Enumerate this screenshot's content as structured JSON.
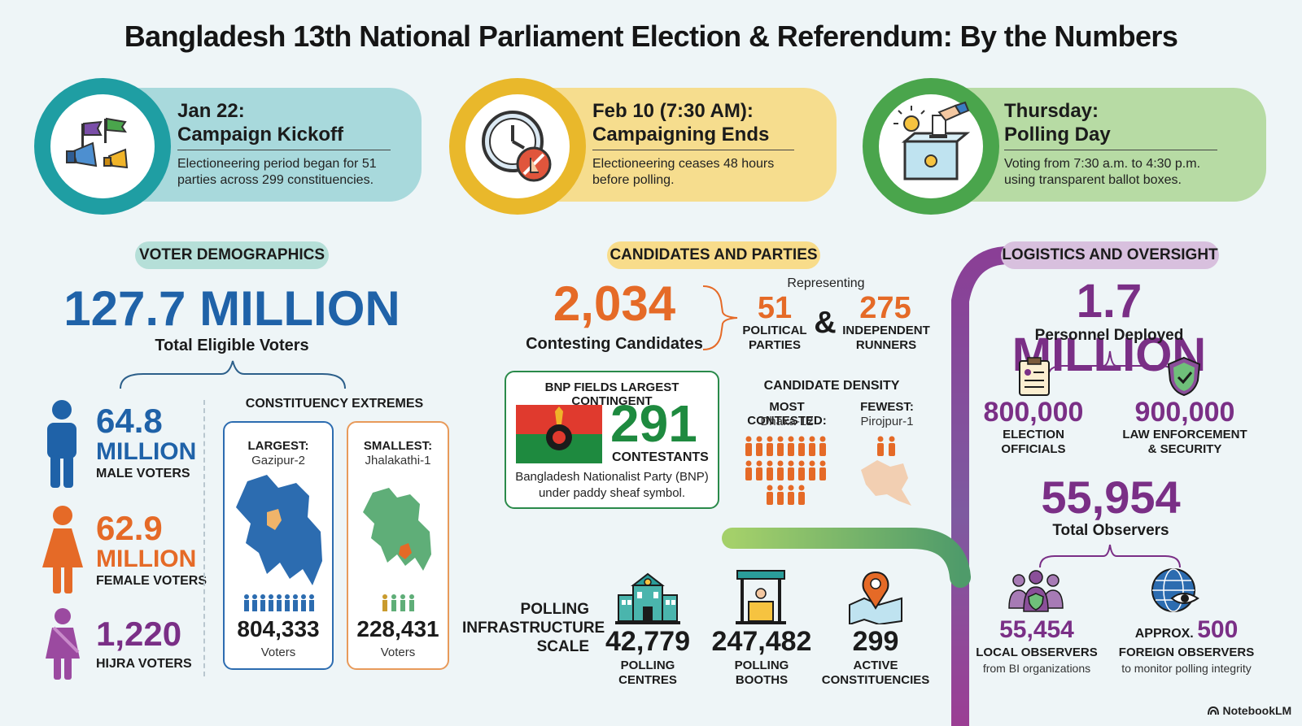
{
  "title": "Bangladesh 13th National Parliament Election & Referendum: By the Numbers",
  "timeline": [
    {
      "head1": "Jan 22:",
      "head2": "Campaign Kickoff",
      "body1": "Electioneering period began for 51",
      "body2": "parties across 299 constituencies.",
      "icon": "megaphone-flags-icon"
    },
    {
      "head1": "Feb 10 (7:30 AM):",
      "head2": "Campaigning Ends",
      "body1": "Electioneering ceases 48 hours",
      "body2": "before polling.",
      "icon": "clock-stop-icon"
    },
    {
      "head1": "Thursday:",
      "head2": "Polling Day",
      "body1": "Voting from 7:30 a.m. to 4:30 p.m.",
      "body2": "using transparent ballot boxes.",
      "icon": "ballot-box-icon"
    }
  ],
  "voters": {
    "section": "VOTER DEMOGRAPHICS",
    "total": "127.7 MILLION",
    "total_label": "Total Eligible Voters",
    "male_value": "64.8",
    "male_unit": "MILLION",
    "male_label": "MALE VOTERS",
    "female_value": "62.9",
    "female_unit": "MILLION",
    "female_label": "FEMALE VOTERS",
    "hijra_value": "1,220",
    "hijra_label": "HIJRA VOTERS",
    "extremes_title": "CONSTITUENCY EXTREMES",
    "largest_label": "LARGEST:",
    "largest_name": "Gazipur-2",
    "largest_count": "804,333",
    "largest_unit": "Voters",
    "smallest_label": "SMALLEST:",
    "smallest_name": "Jhalakathi-1",
    "smallest_count": "228,431",
    "smallest_unit": "Voters"
  },
  "candidates": {
    "section": "CANDIDATES AND PARTIES",
    "total": "2,034",
    "total_label": "Contesting Candidates",
    "representing": "Representing",
    "parties_value": "51",
    "parties_label1": "POLITICAL",
    "parties_label2": "PARTIES",
    "amp": "&",
    "independent_value": "275",
    "independent_label1": "INDEPENDENT",
    "independent_label2": "RUNNERS",
    "bnp_title": "BNP FIELDS LARGEST CONTINGENT",
    "bnp_value": "291",
    "bnp_unit": "CONTESTANTS",
    "bnp_desc1": "Bangladesh Nationalist Party (BNP)",
    "bnp_desc2": "under paddy sheaf symbol.",
    "density_title": "CANDIDATE DENSITY",
    "most_label": "MOST CONTESTED:",
    "most_name": "Dhaka-12",
    "fewest_label": "FEWEST:",
    "fewest_name": "Pirojpur-1"
  },
  "infrastructure": {
    "label1": "POLLING",
    "label2": "INFRASTRUCTURE",
    "label3": "SCALE",
    "items": [
      {
        "value": "42,779",
        "l1": "POLLING",
        "l2": "CENTRES"
      },
      {
        "value": "247,482",
        "l1": "POLLING",
        "l2": "BOOTHS"
      },
      {
        "value": "299",
        "l1": "ACTIVE",
        "l2": "CONSTITUENCIES"
      }
    ]
  },
  "logistics": {
    "section": "LOGISTICS AND OVERSIGHT",
    "total": "1.7 MILLION",
    "total_label": "Personnel Deployed",
    "officials_value": "800,000",
    "officials_l1": "ELECTION",
    "officials_l2": "OFFICIALS",
    "law_value": "900,000",
    "law_l1": "LAW ENFORCEMENT",
    "law_l2": "& SECURITY",
    "observers_value": "55,954",
    "observers_label": "Total Observers",
    "local_value": "55,454",
    "local_l1": "LOCAL OBSERVERS",
    "local_l2": "from BI organizations",
    "foreign_prefix": "APPROX.",
    "foreign_value": "500",
    "foreign_l1": "FOREIGN OBSERVERS",
    "foreign_l2": "to monitor polling integrity"
  },
  "colors": {
    "teal": "#1f9ea3",
    "gold": "#e9b82b",
    "green": "#4aa54c",
    "blue": "#1f62a8",
    "orange": "#e56a27",
    "purple": "#7a2f86"
  },
  "watermark": "NotebookLM"
}
